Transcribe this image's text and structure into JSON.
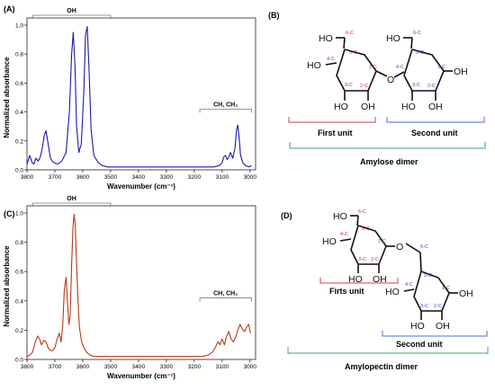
{
  "panels": {
    "A": "(A)",
    "B": "(B)",
    "C": "(C)",
    "D": "(D)"
  },
  "colors": {
    "spectrum_A": "#1a1aa8",
    "spectrum_C": "#b33a1a",
    "bracket_red": "#d04040",
    "bracket_blue": "#4a6fd0",
    "bracket_green": "#40a060",
    "carbon_label": "#c03030",
    "carbon_label_blue": "#3050c0"
  },
  "chart_data": [
    {
      "type": "line",
      "panel": "A",
      "xlabel": "Wavenumber (cm⁻¹)",
      "ylabel": "Normalized absorbance",
      "xlim": [
        3800,
        2980
      ],
      "ylim": [
        0,
        1.0
      ],
      "x_ticks": [
        3800,
        3700,
        3600,
        3500,
        3400,
        3300,
        3200,
        3100,
        3000
      ],
      "y_ticks": [
        "0.0",
        "0.2",
        "0.4",
        "0.6",
        "0.8",
        "1.0"
      ],
      "annotations": [
        {
          "text": "OH",
          "x_range": [
            3780,
            3500
          ]
        },
        {
          "text": "CH, CH₂",
          "x_range": [
            3180,
            2995
          ]
        }
      ],
      "series": [
        {
          "x": [
            3800,
            3790,
            3782,
            3775,
            3768,
            3760,
            3752,
            3744,
            3738,
            3732,
            3724,
            3716,
            3705,
            3690,
            3675,
            3660,
            3648,
            3640,
            3634,
            3628,
            3622,
            3614,
            3605,
            3596,
            3590,
            3584,
            3578,
            3570,
            3560,
            3545,
            3530,
            3510,
            3490,
            3450,
            3400,
            3350,
            3300,
            3250,
            3200,
            3160,
            3130,
            3110,
            3100,
            3094,
            3088,
            3082,
            3076,
            3070,
            3062,
            3054,
            3048,
            3044,
            3040,
            3034,
            3026,
            3016,
            3005,
            2995
          ],
          "y": [
            0.04,
            0.1,
            0.05,
            0.04,
            0.08,
            0.06,
            0.09,
            0.16,
            0.24,
            0.27,
            0.18,
            0.08,
            0.05,
            0.04,
            0.06,
            0.12,
            0.4,
            0.8,
            0.95,
            0.72,
            0.3,
            0.12,
            0.18,
            0.55,
            0.93,
            0.99,
            0.72,
            0.28,
            0.1,
            0.05,
            0.03,
            0.02,
            0.02,
            0.02,
            0.02,
            0.02,
            0.02,
            0.02,
            0.02,
            0.02,
            0.02,
            0.03,
            0.05,
            0.09,
            0.1,
            0.07,
            0.09,
            0.12,
            0.08,
            0.15,
            0.28,
            0.31,
            0.24,
            0.1,
            0.05,
            0.03,
            0.02,
            0.03
          ]
        }
      ]
    },
    {
      "type": "line",
      "panel": "C",
      "xlabel": "Wavenumber (cm⁻¹)",
      "ylabel": "Normalized absorbance",
      "xlim": [
        3800,
        2980
      ],
      "ylim": [
        0,
        1.0
      ],
      "x_ticks": [
        3800,
        3700,
        3600,
        3500,
        3400,
        3300,
        3200,
        3100,
        3000
      ],
      "y_ticks": [
        "0.0",
        "0.2",
        "0.4",
        "0.6",
        "0.8",
        "1.0"
      ],
      "annotations": [
        {
          "text": "OH",
          "x_range": [
            3780,
            3500
          ]
        },
        {
          "text": "CH, CH₂",
          "x_range": [
            3180,
            2995
          ]
        }
      ],
      "series": [
        {
          "x": [
            3800,
            3790,
            3780,
            3770,
            3762,
            3755,
            3748,
            3740,
            3732,
            3724,
            3716,
            3708,
            3700,
            3692,
            3684,
            3678,
            3672,
            3666,
            3660,
            3655,
            3650,
            3645,
            3640,
            3635,
            3631,
            3627,
            3623,
            3618,
            3612,
            3604,
            3596,
            3586,
            3574,
            3560,
            3540,
            3520,
            3500,
            3450,
            3400,
            3350,
            3300,
            3250,
            3200,
            3170,
            3150,
            3135,
            3125,
            3115,
            3108,
            3100,
            3092,
            3084,
            3076,
            3068,
            3060,
            3052,
            3044,
            3036,
            3028,
            3020,
            3012,
            3005,
            2998
          ],
          "y": [
            0.02,
            0.03,
            0.05,
            0.12,
            0.16,
            0.14,
            0.1,
            0.13,
            0.12,
            0.08,
            0.06,
            0.06,
            0.08,
            0.14,
            0.18,
            0.12,
            0.22,
            0.48,
            0.56,
            0.4,
            0.24,
            0.3,
            0.65,
            0.9,
            0.99,
            0.92,
            0.7,
            0.44,
            0.22,
            0.12,
            0.08,
            0.05,
            0.03,
            0.02,
            0.02,
            0.02,
            0.02,
            0.02,
            0.02,
            0.02,
            0.02,
            0.02,
            0.02,
            0.02,
            0.03,
            0.05,
            0.08,
            0.12,
            0.1,
            0.14,
            0.1,
            0.16,
            0.19,
            0.14,
            0.12,
            0.15,
            0.2,
            0.24,
            0.21,
            0.19,
            0.22,
            0.24,
            0.18
          ]
        }
      ]
    }
  ],
  "structures": {
    "B": {
      "labels": {
        "ho_top1": "HO",
        "ho_top2": "HO",
        "ho_left": "HO",
        "ho_bottom1": "HO",
        "oh_bottom1": "OH",
        "o_link": "O",
        "oh_right": "OH",
        "ho_bottom2": "HO",
        "oh_bottom2": "OH"
      },
      "carbons": {
        "u1c6": "6-C",
        "u1c5": "5-C",
        "u1c4": "4-C",
        "u1c3": "3-C",
        "u1c2": "2-C",
        "u1c1": "1-C",
        "u2c6": "6-C",
        "u2c5": "5-C",
        "u2c4": "4-C",
        "u2c3": "3-C",
        "u2c2": "2-C",
        "u2c1": "1-C"
      },
      "units": {
        "first": "First unit",
        "second": "Second unit",
        "dimer": "Amylose dimer"
      }
    },
    "D": {
      "labels": {
        "ho_top": "HO",
        "ho_left": "HO",
        "ho_bottom1": "HO",
        "oh_bottom1": "OH",
        "o_link": "O",
        "ho_left2": "HO",
        "oh_right2": "OH",
        "ho_bottom2": "HO",
        "oh_bottom2": "OH"
      },
      "carbons": {
        "u1c6": "6-C",
        "u1c5": "5-C",
        "u1c4": "4-C",
        "u1c3": "3-C",
        "u1c2": "2-C",
        "u1c1": "1-C",
        "u2c6": "6-C",
        "u2c5": "5-C",
        "u2c4": "4-C",
        "u2c3": "3-C",
        "u2c2": "2-C",
        "u2c1": "1-C"
      },
      "units": {
        "first": "Firts unit",
        "second": "Second unit",
        "dimer": "Amylopectin dimer"
      }
    }
  }
}
